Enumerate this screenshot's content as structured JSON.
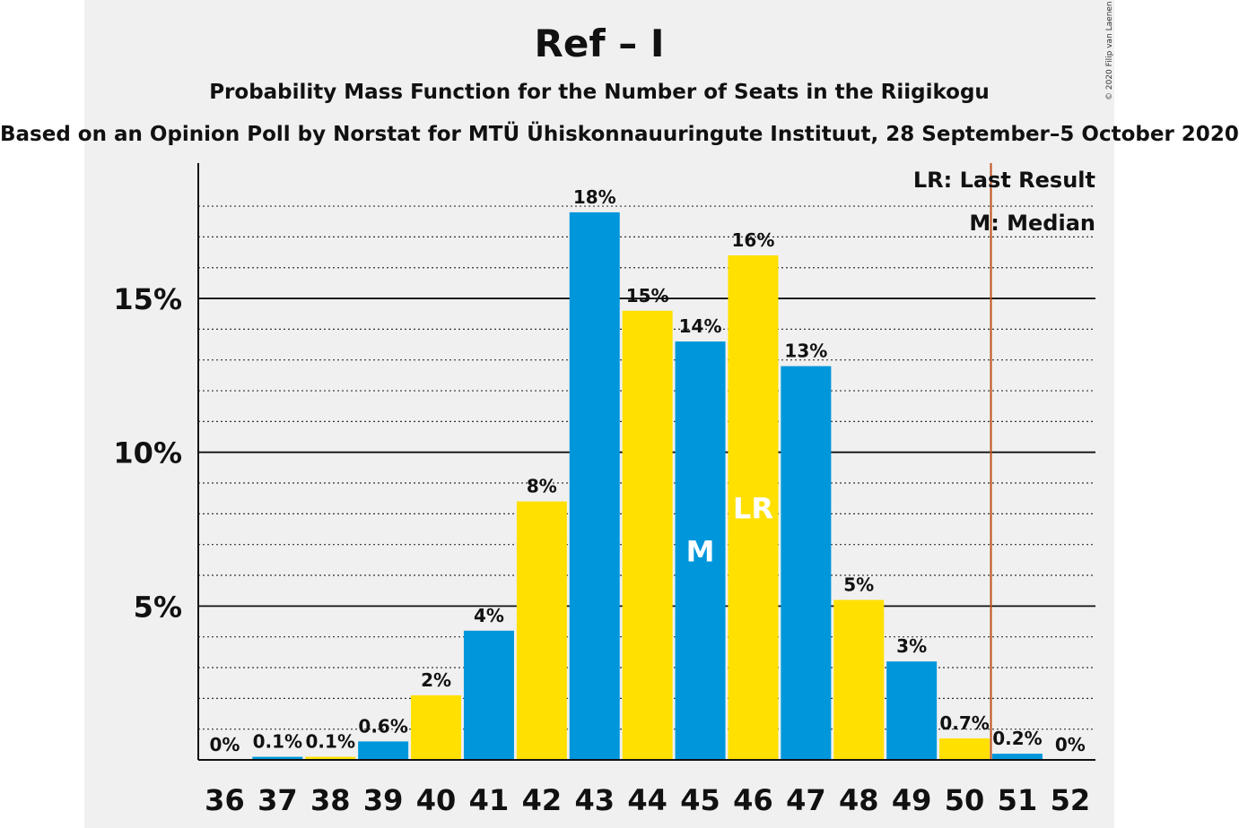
{
  "chart_data": {
    "type": "bar",
    "title": "Ref – I",
    "subtitle": "Probability Mass Function for the Number of Seats in the Riigikogu",
    "source": "Based on an Opinion Poll by Norstat for MTÜ Ühiskonnauuringute Instituut, 28 September–5 October 2020",
    "copyright": "© 2020 Filip van Laenen",
    "categories": [
      "36",
      "37",
      "38",
      "39",
      "40",
      "41",
      "42",
      "43",
      "44",
      "45",
      "46",
      "47",
      "48",
      "49",
      "50",
      "51",
      "52"
    ],
    "values": [
      0,
      0.1,
      0.1,
      0.6,
      2.1,
      4.2,
      8.4,
      17.8,
      14.6,
      13.6,
      16.4,
      12.8,
      5.2,
      3.2,
      0.7,
      0.2,
      0
    ],
    "labels": [
      "0%",
      "0.1%",
      "0.1%",
      "0.6%",
      "2%",
      "4%",
      "8%",
      "18%",
      "15%",
      "14%",
      "16%",
      "13%",
      "5%",
      "3%",
      "0.7%",
      "0.2%",
      "0%"
    ],
    "bar_colors": [
      "#0096db",
      "#0096db",
      "#ffe000",
      "#0096db",
      "#ffe000",
      "#0096db",
      "#ffe000",
      "#0096db",
      "#ffe000",
      "#0096db",
      "#ffe000",
      "#0096db",
      "#ffe000",
      "#0096db",
      "#ffe000",
      "#0096db",
      "#ffe000"
    ],
    "unit": "%",
    "ylim": [
      0,
      19
    ],
    "yticks": [
      5,
      10,
      15
    ],
    "ytick_labels": [
      "5%",
      "10%",
      "15%"
    ],
    "minor_gridlines": true,
    "median": {
      "category": "45",
      "label": "M"
    },
    "last_result": {
      "category": "46",
      "label": "LR",
      "line_after": "50",
      "line_color": "#c0501c"
    },
    "legend": {
      "position": "top-right",
      "items": [
        "LR: Last Result",
        "M: Median"
      ]
    }
  }
}
